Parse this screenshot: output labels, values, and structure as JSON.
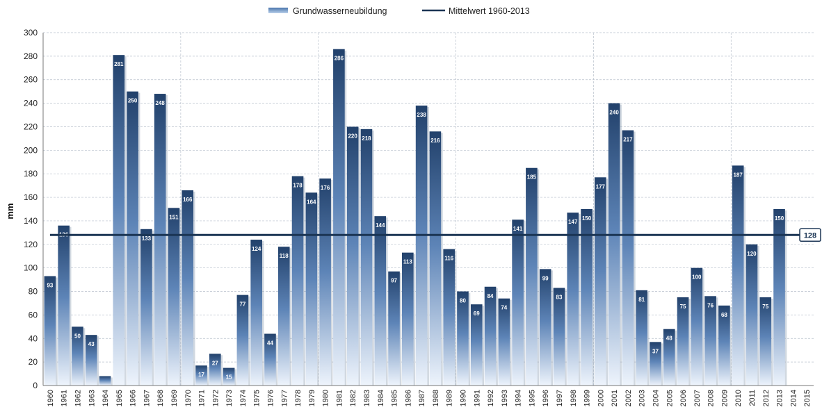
{
  "chart_data": {
    "type": "bar",
    "title": "",
    "xlabel": "",
    "ylabel": "mm",
    "ylim": [
      0,
      300
    ],
    "ytick_step": 20,
    "grid": true,
    "legend_placement": "top-center",
    "categories": [
      "1960",
      "1961",
      "1962",
      "1963",
      "1964",
      "1965",
      "1966",
      "1967",
      "1968",
      "1969",
      "1970",
      "1971",
      "1972",
      "1973",
      "1974",
      "1975",
      "1976",
      "1977",
      "1978",
      "1979",
      "1980",
      "1981",
      "1982",
      "1983",
      "1984",
      "1985",
      "1986",
      "1987",
      "1988",
      "1989",
      "1990",
      "1991",
      "1992",
      "1993",
      "1994",
      "1995",
      "1996",
      "1997",
      "1998",
      "1999",
      "2000",
      "2001",
      "2002",
      "2003",
      "2004",
      "2005",
      "2006",
      "2007",
      "2008",
      "2009",
      "2010",
      "2011",
      "2012",
      "2013",
      "2014",
      "2015"
    ],
    "series": [
      {
        "name": "Grundwasserneubildung",
        "type": "bar",
        "color": "#2c5282",
        "values": [
          93,
          136,
          50,
          43,
          8,
          281,
          250,
          133,
          248,
          151,
          166,
          17,
          27,
          15,
          77,
          124,
          44,
          118,
          178,
          164,
          176,
          286,
          220,
          218,
          144,
          97,
          113,
          238,
          216,
          116,
          80,
          69,
          84,
          74,
          141,
          185,
          99,
          83,
          147,
          150,
          177,
          240,
          217,
          81,
          37,
          48,
          75,
          100,
          76,
          68,
          187,
          120,
          75,
          150,
          null,
          null
        ],
        "data_labels": [
          "93",
          "136",
          "50",
          "43",
          "",
          "281",
          "250",
          "133",
          "248",
          "151",
          "166",
          "17",
          "27",
          "15",
          "77",
          "124",
          "44",
          "118",
          "178",
          "164",
          "176",
          "286",
          "220",
          "218",
          "144",
          "97",
          "113",
          "238",
          "216",
          "116",
          "80",
          "69",
          "84",
          "74",
          "141",
          "185",
          "99",
          "83",
          "147",
          "150",
          "177",
          "240",
          "217",
          "81",
          "37",
          "48",
          "75",
          "100",
          "76",
          "68",
          "187",
          "120",
          "75",
          "150",
          "",
          ""
        ]
      },
      {
        "name": "Mittelwert 1960-2013",
        "type": "line",
        "color": "#1b3554",
        "value": 128,
        "value_label": "128"
      }
    ]
  }
}
